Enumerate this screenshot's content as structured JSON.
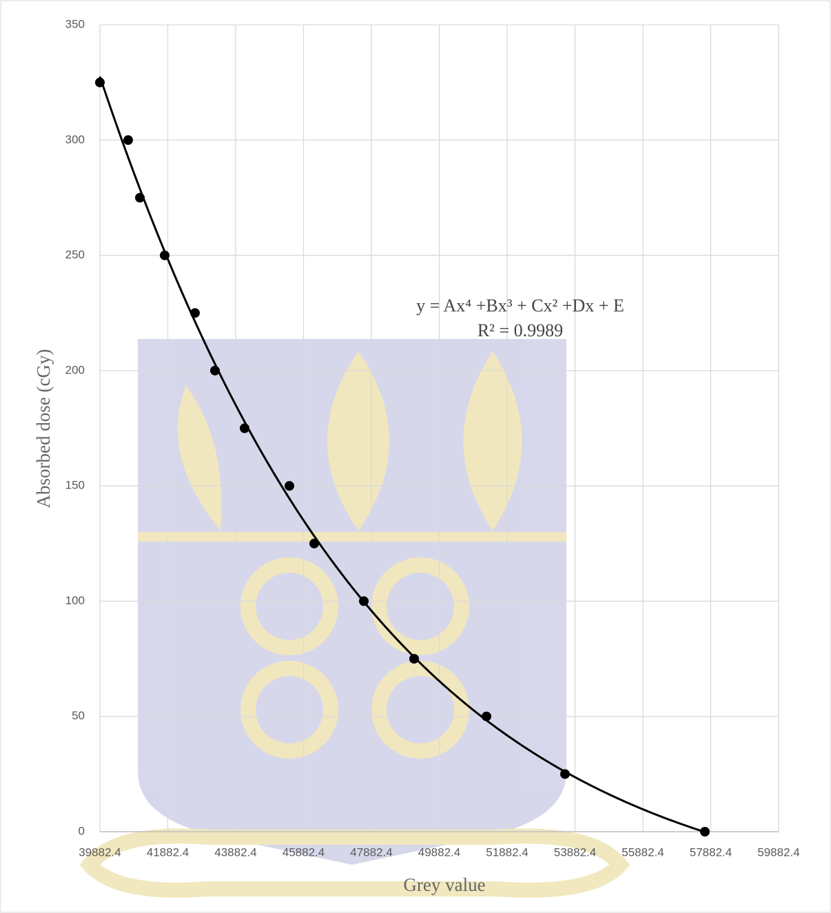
{
  "chart_data": {
    "type": "scatter",
    "x_label": "Grey value",
    "y_label": "Absorbed dose (cGy)",
    "annotations": [
      "y = Ax⁴ +Bx³ + Cx² +Dx + E",
      "R² = 0.9989"
    ],
    "x": [
      39882.4,
      40714,
      41060,
      41791,
      42684,
      43273,
      44146,
      45466,
      46197,
      47659,
      49141,
      51273,
      53588,
      57709
    ],
    "values": [
      325,
      300,
      275,
      250,
      225,
      200,
      175,
      150,
      125,
      100,
      75,
      50,
      25,
      0
    ],
    "color": "#000000",
    "trendline": {
      "type": "polynomial",
      "order": 4,
      "color": "#000000"
    },
    "xlim": [
      39882.4,
      59882.4
    ],
    "xticks": [
      39882.4,
      41882.4,
      43882.4,
      45882.4,
      47882.4,
      49882.4,
      51882.4,
      53882.4,
      55882.4,
      57882.4,
      59882.4
    ],
    "ylim": [
      0,
      350
    ],
    "yticks": [
      0,
      50,
      100,
      150,
      200,
      250,
      300,
      350
    ],
    "grid": true
  }
}
